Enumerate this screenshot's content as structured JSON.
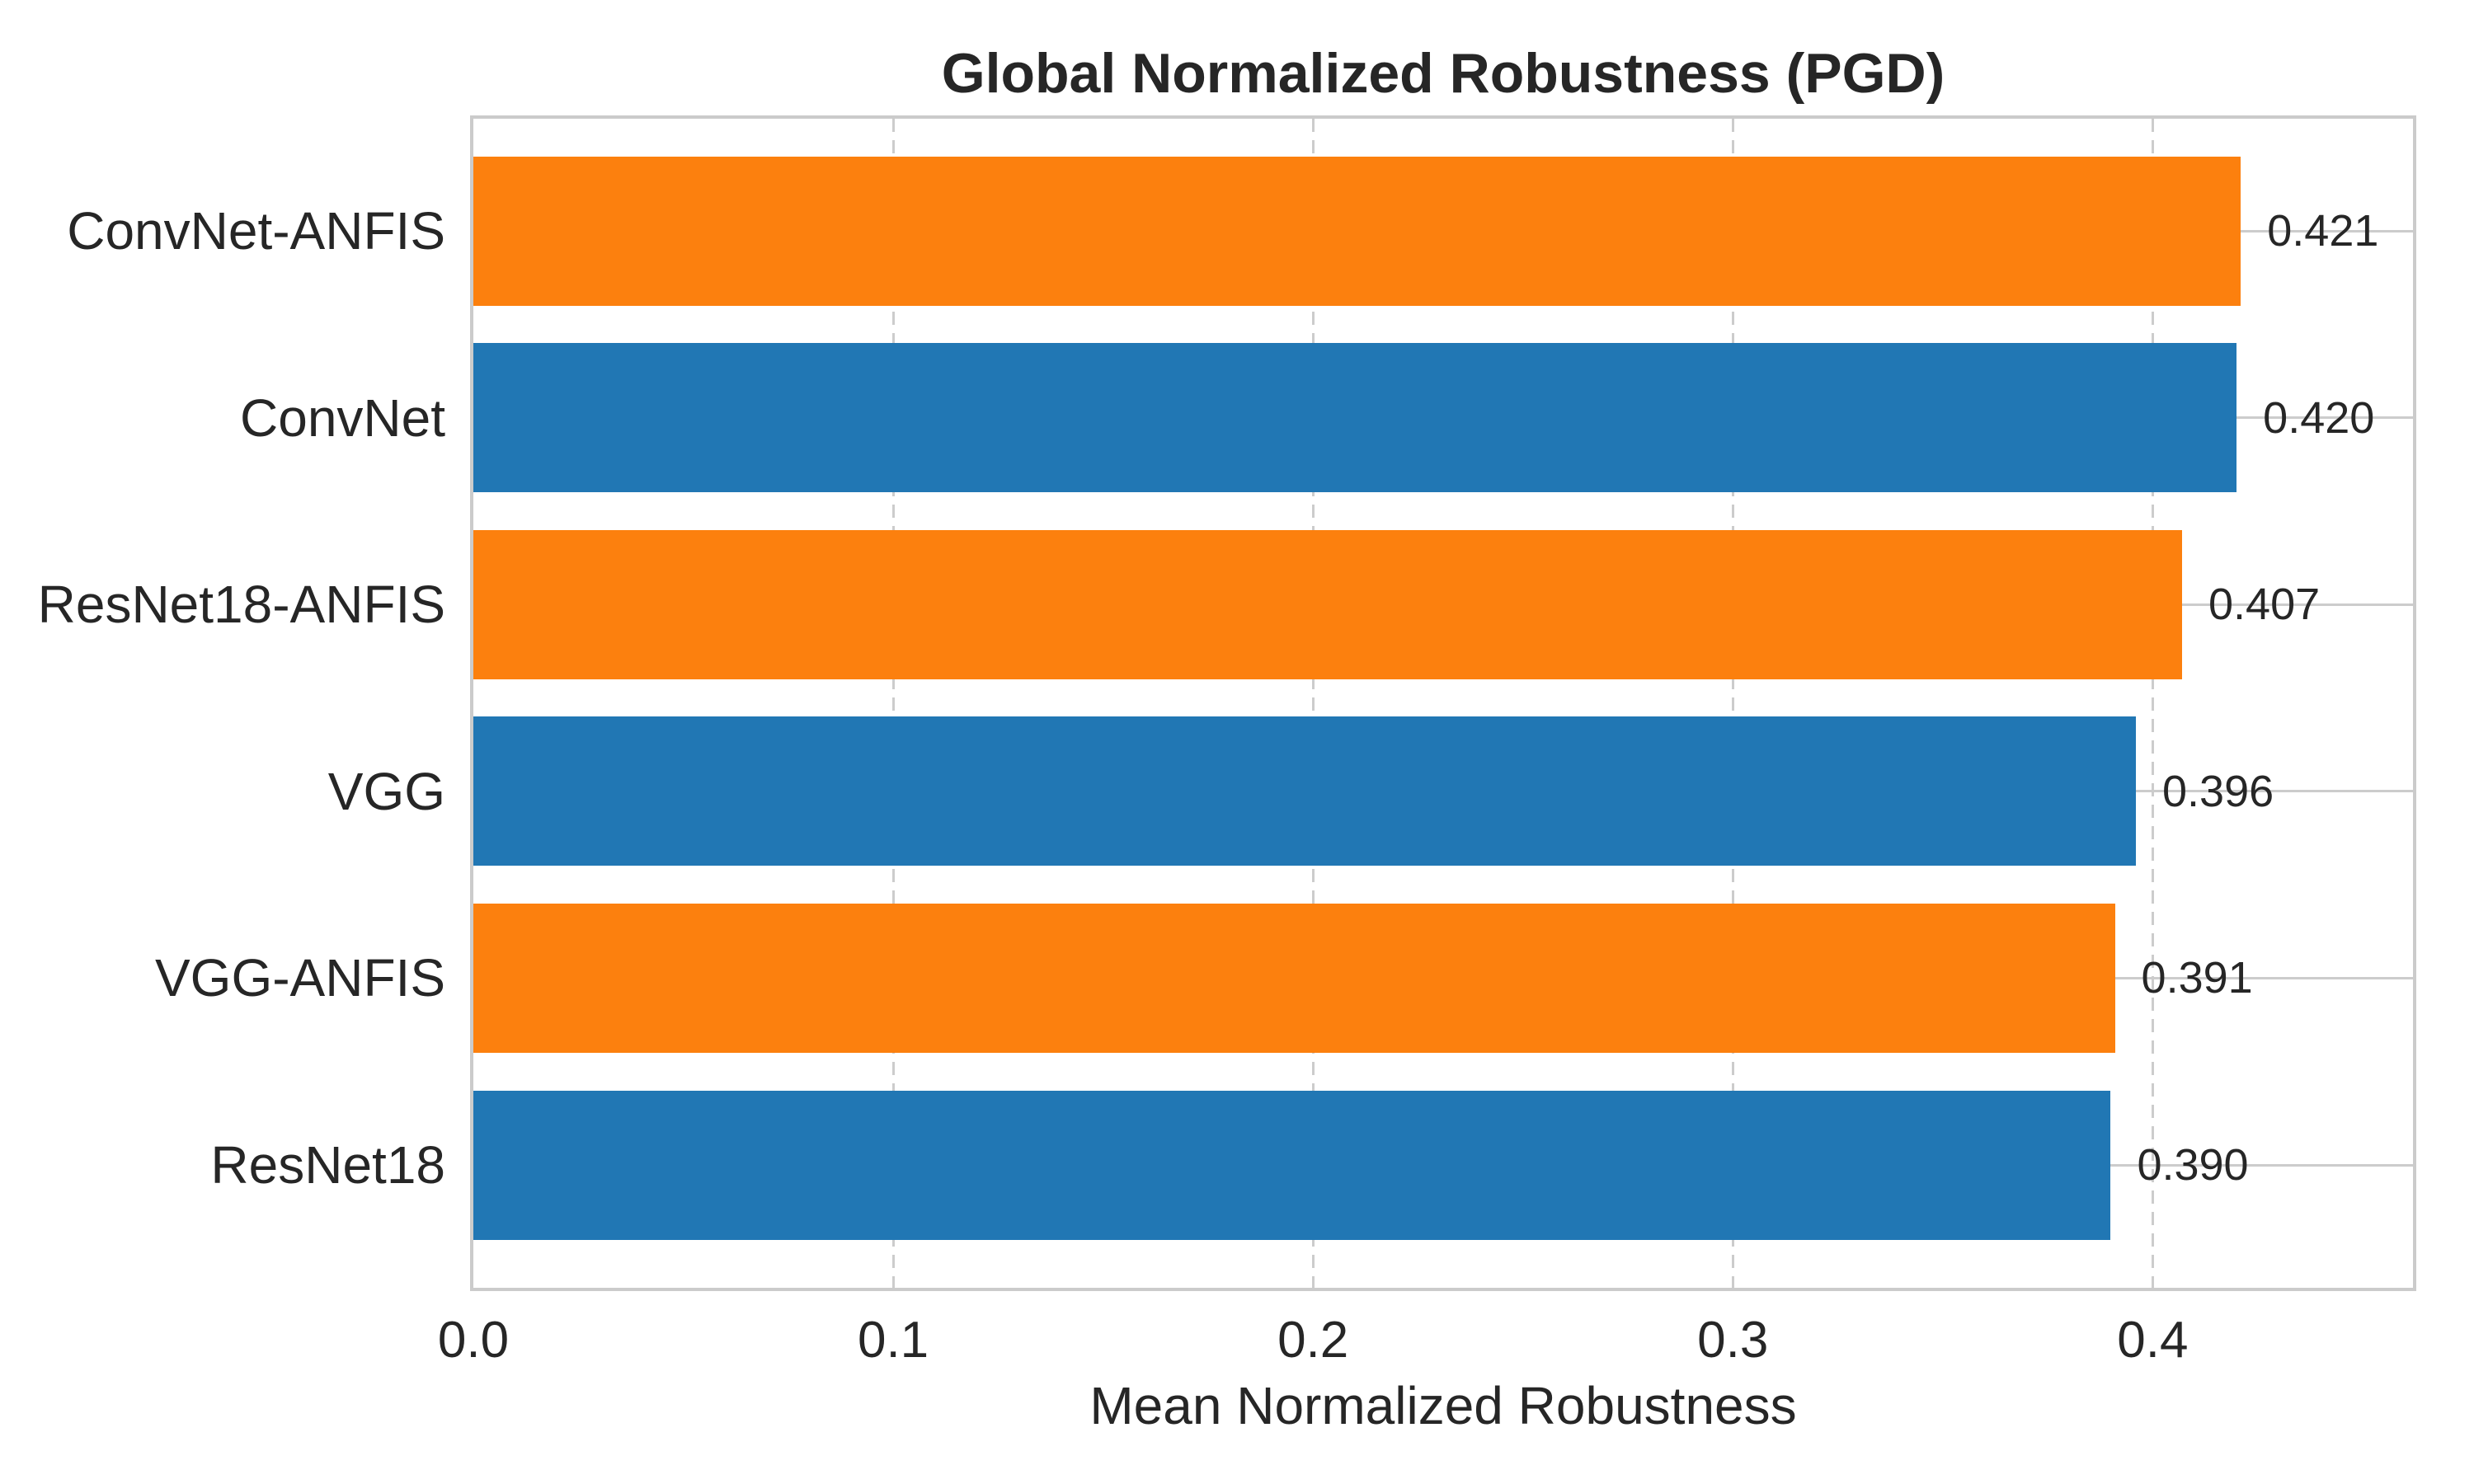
{
  "chart_data": {
    "type": "bar",
    "orientation": "horizontal",
    "title": "Global Normalized Robustness (PGD)",
    "xlabel": "Mean Normalized Robustness",
    "ylabel": "",
    "categories": [
      "ConvNet-ANFIS",
      "ConvNet",
      "ResNet18-ANFIS",
      "VGG",
      "VGG-ANFIS",
      "ResNet18"
    ],
    "values": [
      0.421,
      0.42,
      0.407,
      0.396,
      0.391,
      0.39
    ],
    "value_labels": [
      "0.421",
      "0.420",
      "0.407",
      "0.396",
      "0.391",
      "0.390"
    ],
    "bar_colors": [
      "#fc800e",
      "#2177b4",
      "#fc800e",
      "#2177b4",
      "#fc800e",
      "#2177b4"
    ],
    "x_ticks": [
      0.0,
      0.1,
      0.2,
      0.3,
      0.4
    ],
    "x_tick_labels": [
      "0.0",
      "0.1",
      "0.2",
      "0.3",
      "0.4"
    ],
    "xlim": [
      0.0,
      0.462
    ],
    "grid": {
      "x_style": "dashed",
      "y_style": "solid",
      "color": "#cccccc"
    },
    "legend": "none",
    "colors": {
      "anfis_bar_orange": "#fc800e",
      "baseline_bar_blue": "#2177b4",
      "text": "#262626",
      "spine": "#cbcbcb",
      "grid": "#cccccc",
      "background": "#ffffff"
    }
  }
}
